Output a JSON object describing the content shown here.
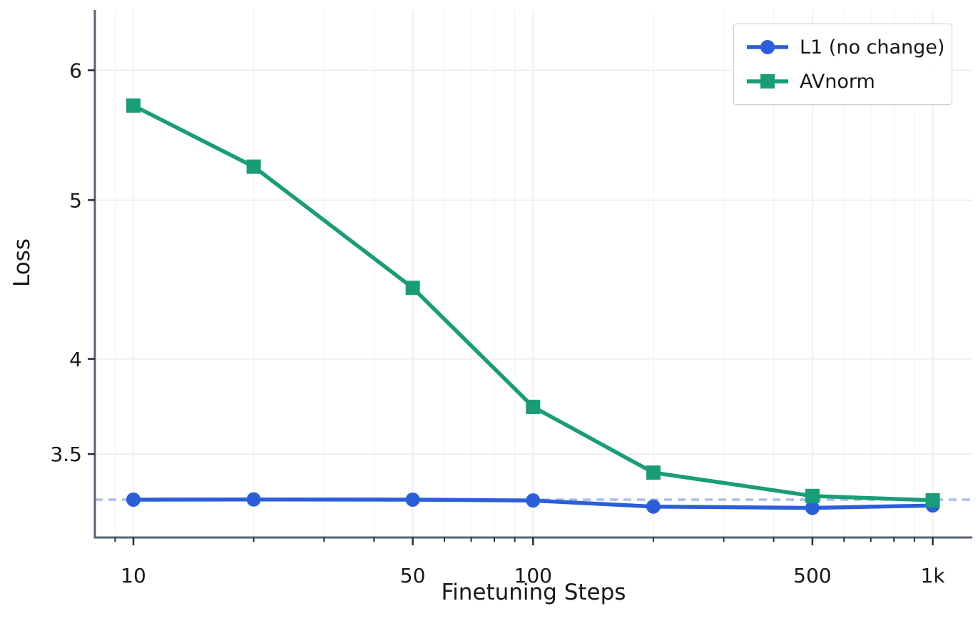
{
  "figure": {
    "xlabel": "Finetuning Steps",
    "ylabel": "Loss"
  },
  "chart_data": {
    "type": "line",
    "title": "",
    "xlabel": "Finetuning Steps",
    "ylabel": "Loss",
    "xscale": "log",
    "yscale": "log",
    "xlim": [
      8.01,
      1256
    ],
    "ylim": [
      3.113,
      6.53
    ],
    "grid": true,
    "x": [
      10,
      20,
      50,
      100,
      200,
      500,
      1000
    ],
    "series": [
      {
        "name": "L1 (no change)",
        "color": "#2a5fd9",
        "marker": "circle",
        "values": [
          3.283,
          3.284,
          3.283,
          3.279,
          3.251,
          3.245,
          3.256
        ]
      },
      {
        "name": "AVnorm",
        "color": "#199d77",
        "marker": "square",
        "values": [
          5.71,
          5.24,
          4.42,
          3.74,
          3.41,
          3.3,
          3.28
        ]
      }
    ],
    "baseline": {
      "y": 3.283,
      "style": "dashed",
      "color": "#a8bfec"
    },
    "xticks": {
      "major_values": [
        10,
        50,
        100,
        500,
        1000
      ],
      "major_labels": [
        "10",
        "50",
        "100",
        "500",
        "1k"
      ],
      "minor_values": [
        9,
        20,
        30,
        40,
        60,
        70,
        80,
        90,
        200,
        300,
        400,
        600,
        700,
        800,
        900
      ]
    },
    "yticks": {
      "major_values": [
        3.5,
        4,
        5,
        6
      ],
      "major_labels": [
        "3.5",
        "4",
        "5",
        "6"
      ]
    },
    "legend": {
      "position": "top-right",
      "entries": [
        "L1 (no change)",
        "AVnorm"
      ]
    },
    "colors": {
      "grid_major": "#ebebf0",
      "grid_minor": "#f4f4f8",
      "spine": "#5b6372",
      "tick": "#2a2d33",
      "text": "#15171c"
    }
  }
}
